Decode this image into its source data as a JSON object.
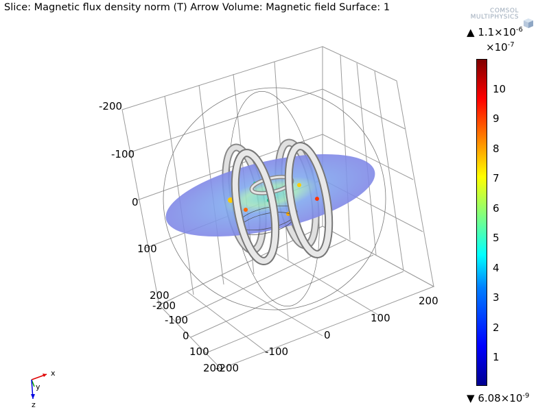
{
  "header": {
    "title": "Slice: Magnetic flux density norm (T)  Arrow Volume: Magnetic field  Surface: 1",
    "logo_line1": "COMSOL",
    "logo_line2": "MULTIPHYSICS"
  },
  "axis_ticks": {
    "vertical": [
      "-200",
      "-100",
      "0",
      "100",
      "200"
    ],
    "front": [
      "-200",
      "-100",
      "0",
      "100",
      "200"
    ],
    "right": [
      "200",
      "100",
      "0",
      "-100",
      "-200"
    ]
  },
  "colorbar": {
    "max_arrow": "▲",
    "max_label": "1.1×10",
    "max_exp": "-6",
    "multiplier": "×10",
    "multiplier_exp": "-7",
    "ticks": [
      "10",
      "9",
      "8",
      "7",
      "6",
      "5",
      "4",
      "3",
      "2",
      "1"
    ],
    "min_arrow": "▼",
    "min_label": "6.08×10",
    "min_exp": "-9"
  },
  "axis_triad": {
    "x": "x",
    "y": "y",
    "z": "z"
  },
  "colors": {
    "slice": "#7f86e6",
    "coil": "#d4d4d4",
    "grid": "#888888"
  }
}
